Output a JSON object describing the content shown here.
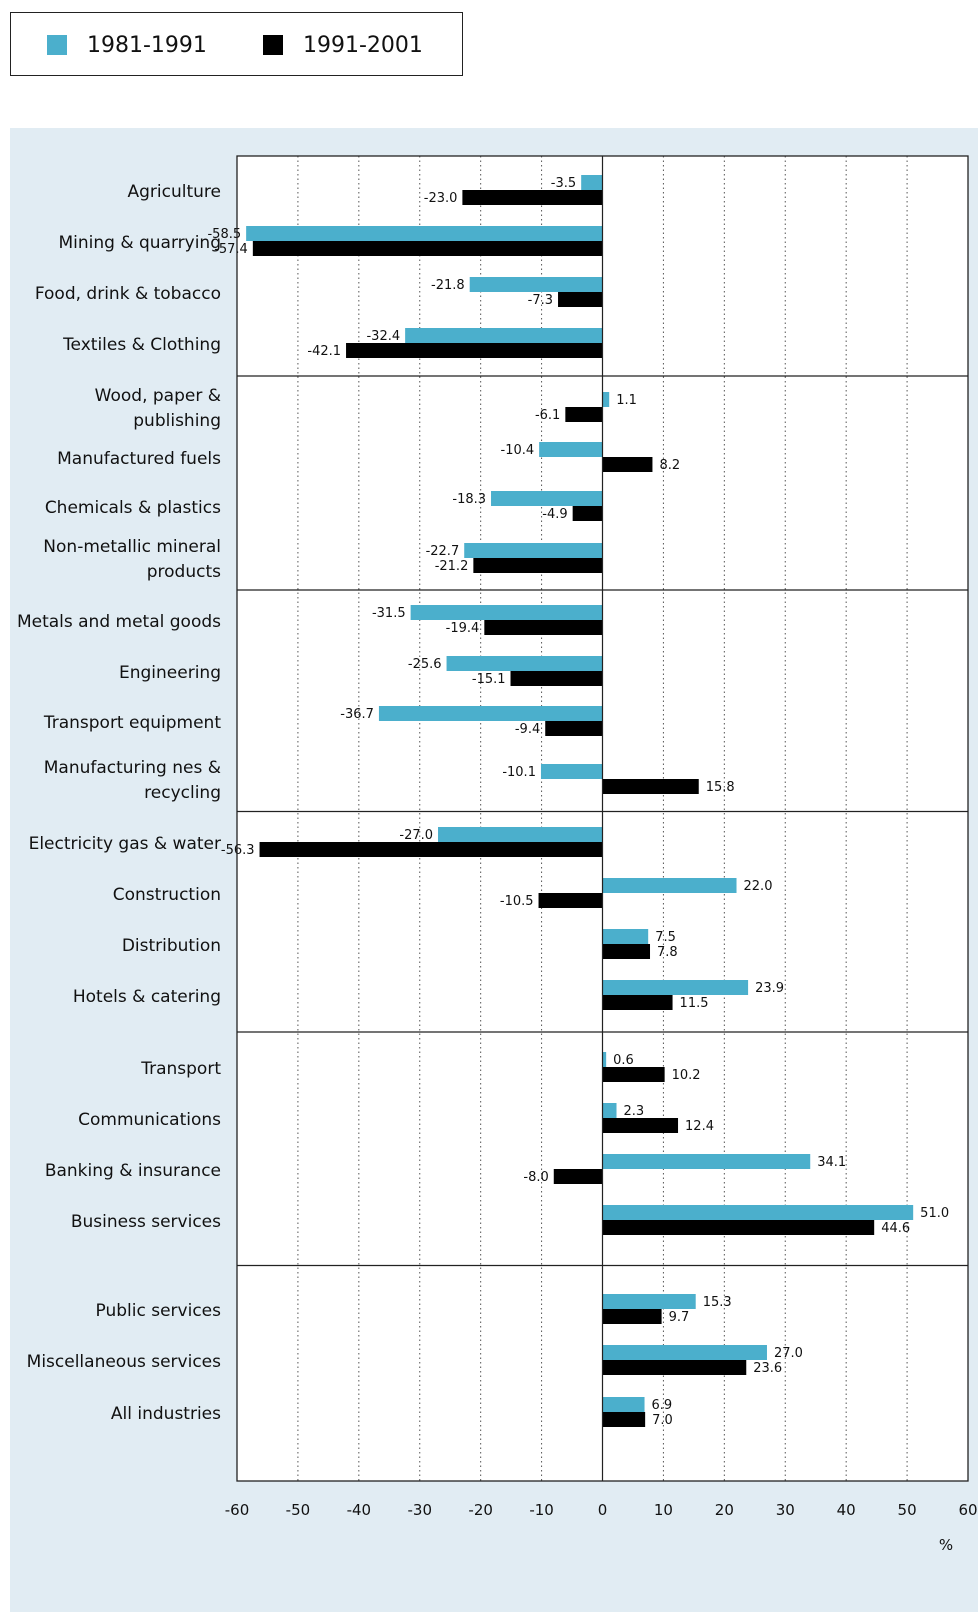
{
  "legend": [
    {
      "label": "1981-1991",
      "color": "#4bafcc"
    },
    {
      "label": "1991-2001",
      "color": "#000000"
    }
  ],
  "chart_data": {
    "type": "bar",
    "orientation": "horizontal",
    "title": "",
    "xlabel": "%",
    "ylabel": "",
    "xlim": [
      -60,
      60
    ],
    "xticks": [
      -60,
      -50,
      -40,
      -30,
      -20,
      -10,
      0,
      10,
      20,
      30,
      40,
      50,
      60
    ],
    "grid": "vertical dotted",
    "legend_position": "top-left",
    "categories": [
      [
        "Agriculture"
      ],
      [
        "Mining & quarrying"
      ],
      [
        "Food, drink & tobacco"
      ],
      [
        "Textiles & Clothing"
      ],
      [
        "Wood, paper &",
        "publishing"
      ],
      [
        "Manufactured fuels"
      ],
      [
        "Chemicals & plastics"
      ],
      [
        "Non-metallic mineral",
        "products"
      ],
      [
        "Metals and metal goods"
      ],
      [
        "Engineering"
      ],
      [
        "Transport equipment"
      ],
      [
        "Manufacturing nes &",
        "recycling"
      ],
      [
        "Electricity gas & water"
      ],
      [
        "Construction"
      ],
      [
        "Distribution"
      ],
      [
        "Hotels & catering"
      ],
      [
        "Transport"
      ],
      [
        "Communications"
      ],
      [
        "Banking & insurance"
      ],
      [
        "Business services"
      ],
      [
        "Public services"
      ],
      [
        "Miscellaneous services"
      ],
      [
        "All industries"
      ]
    ],
    "groups": [
      [
        0,
        3
      ],
      [
        4,
        7
      ],
      [
        8,
        11
      ],
      [
        12,
        15
      ],
      [
        16,
        19
      ],
      [
        20,
        22
      ]
    ],
    "series": [
      {
        "name": "1981-1991",
        "color": "#4bafcc",
        "values": [
          -3.5,
          -58.5,
          -21.8,
          -32.4,
          1.1,
          -10.4,
          -18.3,
          -22.7,
          -31.5,
          -25.6,
          -36.7,
          -10.1,
          -27.0,
          22.0,
          7.5,
          23.9,
          0.6,
          2.3,
          34.1,
          51.0,
          15.3,
          27.0,
          6.9
        ]
      },
      {
        "name": "1991-2001",
        "color": "#000000",
        "values": [
          -23.0,
          -57.4,
          -7.3,
          -42.1,
          -6.1,
          8.2,
          -4.9,
          -21.2,
          -19.4,
          -15.1,
          -9.4,
          15.8,
          -56.3,
          -10.5,
          7.8,
          11.5,
          10.2,
          12.4,
          -8.0,
          44.6,
          9.7,
          23.6,
          7.0
        ]
      }
    ]
  }
}
